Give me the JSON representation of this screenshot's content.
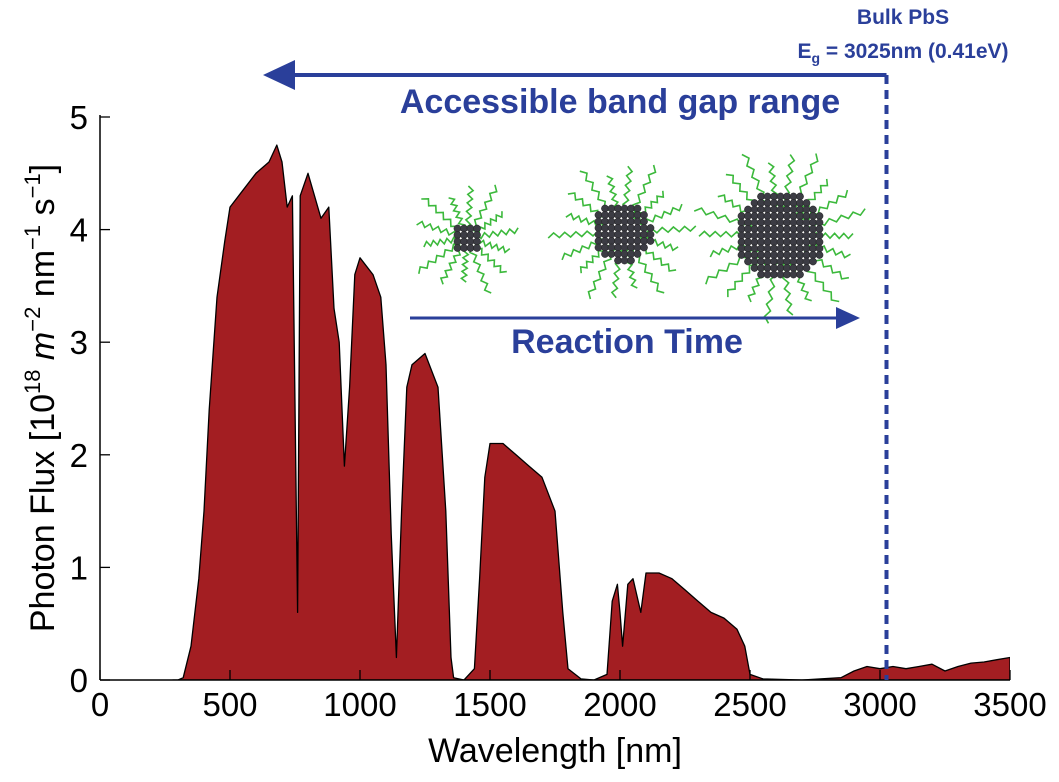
{
  "chart_data": {
    "type": "area",
    "xlabel": "Wavelength [nm]",
    "ylabel_parts": [
      {
        "text": "Photon Flux [10",
        "style": "normal"
      },
      {
        "text": "18",
        "style": "sup"
      },
      {
        "text": " m",
        "style": "italic"
      },
      {
        "text": "−2",
        "style": "sup"
      },
      {
        "text": " nm",
        "style": "normal"
      },
      {
        "text": "−1",
        "style": "sup"
      },
      {
        "text": " s",
        "style": "normal"
      },
      {
        "text": "−1",
        "style": "sup"
      },
      {
        "text": "]",
        "style": "normal"
      }
    ],
    "xlim": [
      0,
      3500
    ],
    "ylim": [
      0,
      5
    ],
    "xticks": [
      0,
      500,
      1000,
      1500,
      2000,
      2500,
      3000,
      3500
    ],
    "yticks": [
      0,
      1,
      2,
      3,
      4,
      5
    ],
    "series": [
      {
        "color": "#a31e22",
        "x": [
          280,
          300,
          320,
          350,
          380,
          400,
          420,
          450,
          480,
          500,
          550,
          600,
          650,
          680,
          700,
          720,
          740,
          760,
          770,
          800,
          850,
          880,
          900,
          920,
          940,
          960,
          980,
          1000,
          1050,
          1080,
          1100,
          1120,
          1140,
          1160,
          1180,
          1200,
          1250,
          1300,
          1330,
          1350,
          1360,
          1400,
          1440,
          1460,
          1480,
          1500,
          1550,
          1600,
          1650,
          1700,
          1750,
          1780,
          1800,
          1850,
          1900,
          1950,
          1970,
          1990,
          2000,
          2010,
          2030,
          2050,
          2080,
          2100,
          2150,
          2200,
          2250,
          2300,
          2350,
          2400,
          2450,
          2480,
          2500,
          2550,
          2700,
          2850,
          2900,
          2950,
          3000,
          3050,
          3100,
          3150,
          3200,
          3250,
          3300,
          3350,
          3400,
          3450,
          3500
        ],
        "values": [
          0,
          0,
          0.02,
          0.3,
          0.9,
          1.5,
          2.4,
          3.4,
          3.9,
          4.2,
          4.35,
          4.5,
          4.6,
          4.75,
          4.6,
          4.2,
          4.3,
          0.6,
          4.3,
          4.5,
          4.1,
          4.2,
          3.3,
          3.0,
          1.9,
          2.6,
          3.6,
          3.75,
          3.6,
          3.4,
          2.8,
          1.3,
          0.2,
          1.5,
          2.6,
          2.8,
          2.9,
          2.6,
          1.5,
          0.2,
          0.02,
          0,
          0.1,
          0.9,
          1.8,
          2.1,
          2.1,
          2.0,
          1.9,
          1.8,
          1.5,
          0.6,
          0.1,
          0.01,
          0,
          0.05,
          0.7,
          0.85,
          0.6,
          0.3,
          0.85,
          0.9,
          0.6,
          0.95,
          0.95,
          0.9,
          0.8,
          0.7,
          0.6,
          0.55,
          0.45,
          0.3,
          0.05,
          0.01,
          0,
          0.02,
          0.08,
          0.12,
          0.1,
          0.12,
          0.1,
          0.12,
          0.14,
          0.08,
          0.12,
          0.15,
          0.16,
          0.18,
          0.2
        ]
      }
    ],
    "bulk_gap": {
      "title": "Bulk PbS",
      "symbol": "E",
      "subscript": "g",
      "rest": " = 3025nm (0.41eV)",
      "wavelength": 3025,
      "color": "#2a3f9a"
    },
    "range_label": "Accessible band gap range",
    "time_label": "Reaction Time"
  }
}
